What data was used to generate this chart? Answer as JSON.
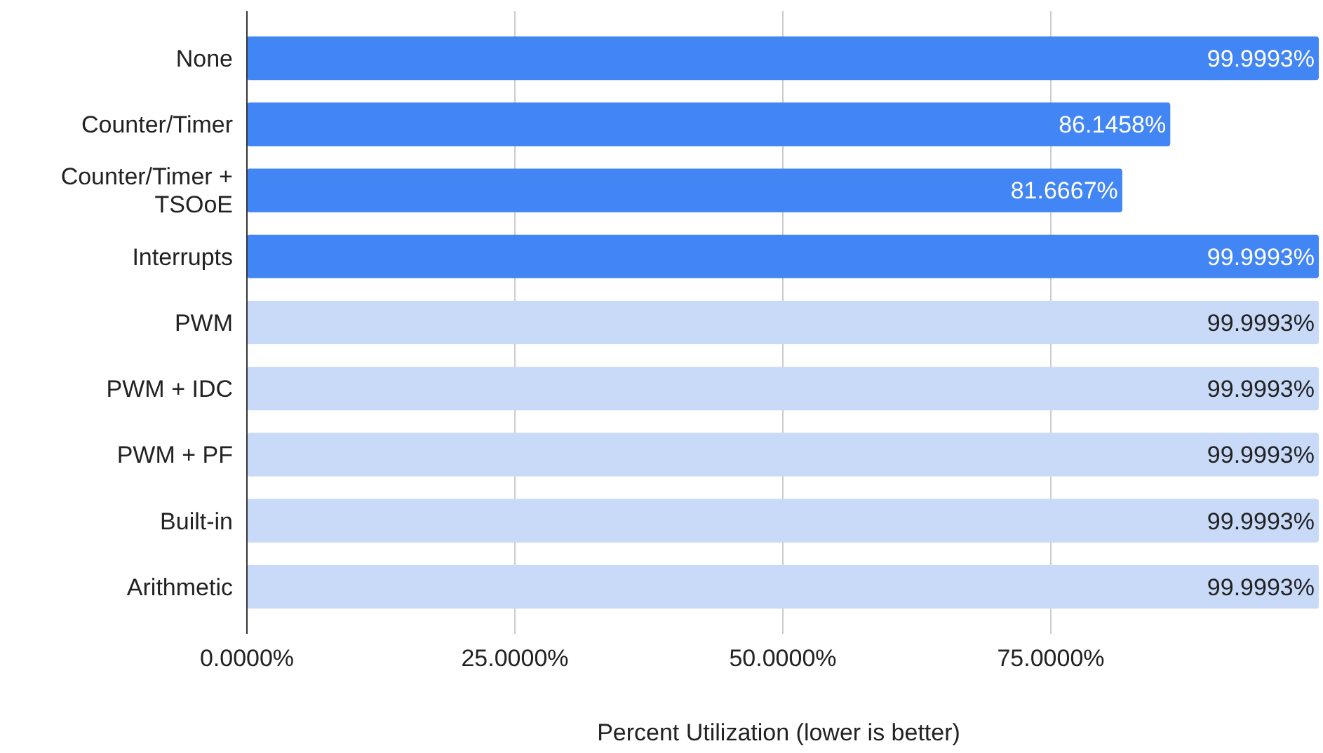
{
  "chart_data": {
    "type": "bar",
    "orientation": "horizontal",
    "xlabel": "Percent Utilization (lower is better)",
    "categories": [
      "None",
      "Counter/Timer",
      "Counter/Timer + TSOoE",
      "Interrupts",
      "PWM",
      "PWM + IDC",
      "PWM + PF",
      "Built-in",
      "Arithmetic"
    ],
    "values": [
      99.9993,
      86.1458,
      81.6667,
      99.9993,
      99.9993,
      99.9993,
      99.9993,
      99.9993,
      99.9993
    ],
    "colors": [
      "#4285f4",
      "#4285f4",
      "#4285f4",
      "#4285f4",
      "#c9daf8",
      "#c9daf8",
      "#c9daf8",
      "#c9daf8",
      "#c9daf8"
    ],
    "value_labels": [
      "99.9993%",
      "86.1458%",
      "81.6667%",
      "99.9993%",
      "99.9993%",
      "99.9993%",
      "99.9993%",
      "99.9993%",
      "99.9993%"
    ],
    "xlim": [
      0,
      100
    ],
    "xticks": [
      {
        "value": 0,
        "label": "0.0000%"
      },
      {
        "value": 25,
        "label": "25.0000%"
      },
      {
        "value": 50,
        "label": "50.0000%"
      },
      {
        "value": 75,
        "label": "75.0000%"
      }
    ],
    "grid": "x"
  }
}
